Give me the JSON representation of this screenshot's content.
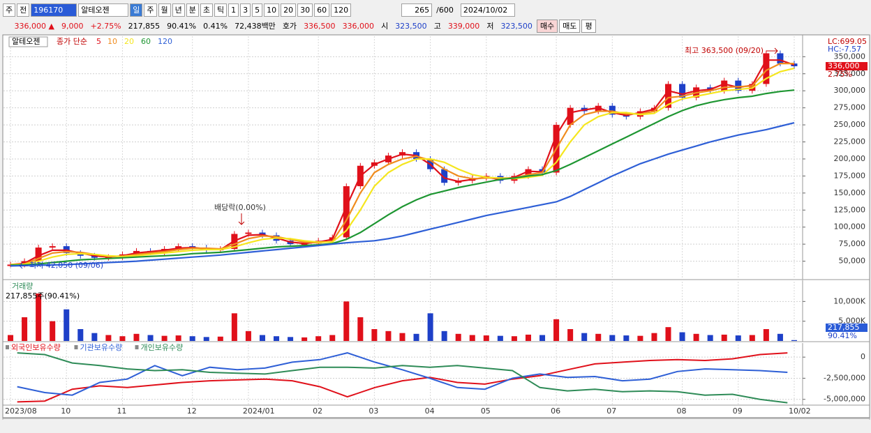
{
  "toolbar": [
    "주",
    "전",
    "196170",
    "알테오젠",
    "일",
    "주",
    "월",
    "년",
    "분",
    "초",
    "틱",
    "1",
    "3",
    "5",
    "10",
    "20",
    "30",
    "60",
    "120",
    "265",
    "/600",
    "2024/10/02"
  ],
  "quote": [
    "336,000 ▲",
    "9,000",
    "+2.75%",
    "217,855",
    "90.41%",
    "0.41%",
    "72,438백만",
    "호가",
    "336,500",
    "336,000",
    "시",
    "323,500",
    "고",
    "339,000",
    "저",
    "323,500",
    "매수",
    "매도",
    "평"
  ],
  "chart_data": [
    {
      "type": "candle-line",
      "title": "알테오젠",
      "legend_prefix": "종가 단순",
      "categories": [
        "2023/08",
        null,
        null,
        null,
        "10",
        null,
        null,
        null,
        "11",
        null,
        null,
        null,
        null,
        "12",
        null,
        null,
        null,
        "2024/01",
        null,
        null,
        null,
        null,
        "02",
        null,
        null,
        null,
        "03",
        null,
        null,
        null,
        "04",
        null,
        null,
        null,
        "05",
        null,
        null,
        null,
        null,
        "06",
        null,
        null,
        null,
        "07",
        null,
        null,
        null,
        null,
        "08",
        null,
        null,
        null,
        "09",
        null,
        null,
        null,
        "10/02"
      ],
      "close": [
        45000,
        50000,
        70000,
        72000,
        62000,
        58000,
        55000,
        56000,
        60000,
        65000,
        63000,
        68000,
        72000,
        70000,
        66000,
        68000,
        90000,
        92000,
        88000,
        80000,
        75000,
        76000,
        80000,
        85000,
        160000,
        190000,
        195000,
        205000,
        210000,
        200000,
        185000,
        165000,
        168000,
        172000,
        175000,
        168000,
        175000,
        185000,
        180000,
        250000,
        275000,
        270000,
        278000,
        265000,
        262000,
        270000,
        275000,
        310000,
        290000,
        305000,
        300000,
        315000,
        300000,
        310000,
        355000,
        340000,
        336000
      ],
      "series": [
        {
          "name": "5",
          "color": "#e0101a",
          "values": [
            45000,
            47000,
            58000,
            66000,
            66000,
            62000,
            58000,
            56000,
            58000,
            62000,
            64000,
            66000,
            69000,
            70000,
            68000,
            67000,
            80000,
            88000,
            89000,
            84000,
            78000,
            76000,
            78000,
            82000,
            130000,
            175000,
            192000,
            200000,
            207000,
            205000,
            192000,
            172000,
            167000,
            170000,
            173000,
            170000,
            173000,
            182000,
            181000,
            235000,
            268000,
            272000,
            275000,
            268000,
            264000,
            268000,
            273000,
            300000,
            295000,
            300000,
            302000,
            310000,
            305000,
            308000,
            345000,
            345000,
            338000
          ]
        },
        {
          "name": "10",
          "color": "#f08c1e",
          "values": [
            45000,
            46000,
            54000,
            62000,
            64000,
            63000,
            60000,
            57000,
            57000,
            60000,
            62000,
            64000,
            67000,
            69000,
            69000,
            68000,
            75000,
            83000,
            87000,
            86000,
            82000,
            78000,
            77000,
            79000,
            110000,
            150000,
            180000,
            192000,
            200000,
            204000,
            198000,
            185000,
            175000,
            171000,
            172000,
            172000,
            172000,
            177000,
            180000,
            215000,
            250000,
            265000,
            270000,
            270000,
            266000,
            266000,
            270000,
            290000,
            292000,
            297000,
            300000,
            305000,
            306000,
            307000,
            330000,
            340000,
            340000
          ]
        },
        {
          "name": "20",
          "color": "#f5e61e",
          "values": [
            45000,
            45500,
            50000,
            56000,
            60000,
            61000,
            60000,
            58000,
            57000,
            58000,
            60000,
            62000,
            64000,
            66000,
            67000,
            67000,
            71000,
            77000,
            82000,
            84000,
            83000,
            80000,
            78000,
            78000,
            95000,
            125000,
            160000,
            180000,
            192000,
            200000,
            200000,
            195000,
            185000,
            177000,
            173000,
            172000,
            171000,
            173000,
            176000,
            195000,
            225000,
            250000,
            262000,
            268000,
            268000,
            265000,
            267000,
            280000,
            288000,
            292000,
            296000,
            300000,
            302000,
            304000,
            318000,
            328000,
            333000
          ]
        },
        {
          "name": "60",
          "color": "#1e9632",
          "values": [
            44000,
            44500,
            46000,
            48000,
            50000,
            52000,
            53000,
            54000,
            55000,
            56000,
            57000,
            58000,
            59000,
            61000,
            62000,
            63000,
            65000,
            67000,
            69000,
            71000,
            72000,
            73000,
            74000,
            76000,
            82000,
            92000,
            105000,
            118000,
            130000,
            140000,
            148000,
            153000,
            158000,
            162000,
            166000,
            170000,
            172000,
            175000,
            177000,
            183000,
            192000,
            202000,
            212000,
            222000,
            232000,
            242000,
            252000,
            262000,
            271000,
            278000,
            283000,
            287000,
            290000,
            292000,
            296000,
            299000,
            301000
          ]
        },
        {
          "name": "120",
          "color": "#2e5fd6",
          "values": [
            43000,
            43500,
            44000,
            44500,
            45000,
            46000,
            47000,
            48000,
            49000,
            50000,
            51500,
            53000,
            54500,
            56000,
            57500,
            59000,
            61000,
            63000,
            65000,
            67000,
            69000,
            71000,
            73000,
            75000,
            77000,
            78500,
            80000,
            83000,
            87000,
            92000,
            97000,
            102000,
            107000,
            112000,
            117000,
            121000,
            125000,
            129000,
            133000,
            137000,
            145000,
            155000,
            165000,
            175000,
            184000,
            193000,
            200000,
            207000,
            213000,
            219000,
            225000,
            230000,
            235000,
            239000,
            243000,
            248000,
            253000
          ]
        }
      ],
      "ylim": [
        24000,
        380000
      ],
      "yticks": [
        {
          "value": 50000,
          "label": "50,000"
        },
        {
          "value": 75000,
          "label": "75,000"
        },
        {
          "value": 100000,
          "label": "100,000"
        },
        {
          "value": 125000,
          "label": "125,000"
        },
        {
          "value": 150000,
          "label": "150,000"
        },
        {
          "value": 175000,
          "label": "175,000"
        },
        {
          "value": 200000,
          "label": "200,000"
        },
        {
          "value": 225000,
          "label": "225,000"
        },
        {
          "value": 250000,
          "label": "250,000"
        },
        {
          "value": 275000,
          "label": "275,000"
        },
        {
          "value": 300000,
          "label": "300,000"
        },
        {
          "value": 325000,
          "label": "325,000"
        },
        {
          "value": 350000,
          "label": "350,000"
        }
      ],
      "annotations": [
        "최고 363,500 (09/20)",
        "최저 42,050 (09/06)",
        "배당락(0.00%)"
      ],
      "right_labels": [
        "LC:699.05",
        "HC:-7.57",
        "336,000",
        "2.75%"
      ],
      "grid": true
    },
    {
      "type": "volume",
      "title": "거래량",
      "subtitle": "217,855주(90.41%)",
      "values": [
        1500000,
        6000000,
        12000000,
        5000000,
        8000000,
        3000000,
        2000000,
        1500000,
        1200000,
        1800000,
        1500000,
        1300000,
        1400000,
        1200000,
        1000000,
        1100000,
        7000000,
        2500000,
        1500000,
        1200000,
        1000000,
        900000,
        1200000,
        1500000,
        10000000,
        6000000,
        3000000,
        2500000,
        2000000,
        1800000,
        7000000,
        2500000,
        1800000,
        1500000,
        1400000,
        1300000,
        1200000,
        1600000,
        1500000,
        5500000,
        3000000,
        2000000,
        1800000,
        1500000,
        1400000,
        1300000,
        2000000,
        3500000,
        2200000,
        1800000,
        1500000,
        1600000,
        1400000,
        1500000,
        3000000,
        1800000,
        217855
      ],
      "ylim": [
        0,
        15000000
      ],
      "yticks": [
        {
          "value": 5000000,
          "label": "5,000K"
        },
        {
          "value": 10000000,
          "label": "10,000K"
        }
      ],
      "right_labels": [
        "217,855",
        "90.41%"
      ],
      "grid": true
    },
    {
      "type": "line",
      "series": [
        {
          "name": "외국인보유수량",
          "color": "#e0101a",
          "values": [
            -5300000,
            -5200000,
            -3800000,
            -3400000,
            -3600000,
            -3300000,
            -3000000,
            -2800000,
            -2700000,
            -2600000,
            -2800000,
            -3500000,
            -4700000,
            -3600000,
            -2800000,
            -2400000,
            -3000000,
            -3200000,
            -2600000,
            -2200000,
            -1500000,
            -800000,
            -600000,
            -400000,
            -300000,
            -400000,
            -200000,
            300000,
            500000
          ]
        },
        {
          "name": "기관보유수량",
          "color": "#2e5fd6",
          "values": [
            -3500000,
            -4200000,
            -4500000,
            -3000000,
            -2600000,
            -1000000,
            -2200000,
            -1200000,
            -1500000,
            -1300000,
            -600000,
            -300000,
            500000,
            -600000,
            -1500000,
            -2500000,
            -3600000,
            -3800000,
            -2500000,
            -2000000,
            -2400000,
            -2300000,
            -2800000,
            -2600000,
            -1700000,
            -1400000,
            -1500000,
            -1600000,
            -1800000
          ]
        },
        {
          "name": "개인보유수량",
          "color": "#2e8b57",
          "values": [
            500000,
            300000,
            -700000,
            -1000000,
            -1400000,
            -1600000,
            -1500000,
            -1800000,
            -1900000,
            -2000000,
            -1600000,
            -1200000,
            -1200000,
            -1300000,
            -1000000,
            -1200000,
            -1000000,
            -1300000,
            -1600000,
            -3600000,
            -4000000,
            -3800000,
            -4100000,
            -4000000,
            -4100000,
            -4500000,
            -4400000,
            -5000000,
            -5400000
          ]
        }
      ],
      "ylim": [
        -5600000,
        1500000
      ],
      "yticks": [
        0,
        {
          "value": -2500000,
          "label": "-2,500,000"
        },
        {
          "value": -5000000,
          "label": "-5,000,000"
        }
      ],
      "grid": true
    }
  ]
}
